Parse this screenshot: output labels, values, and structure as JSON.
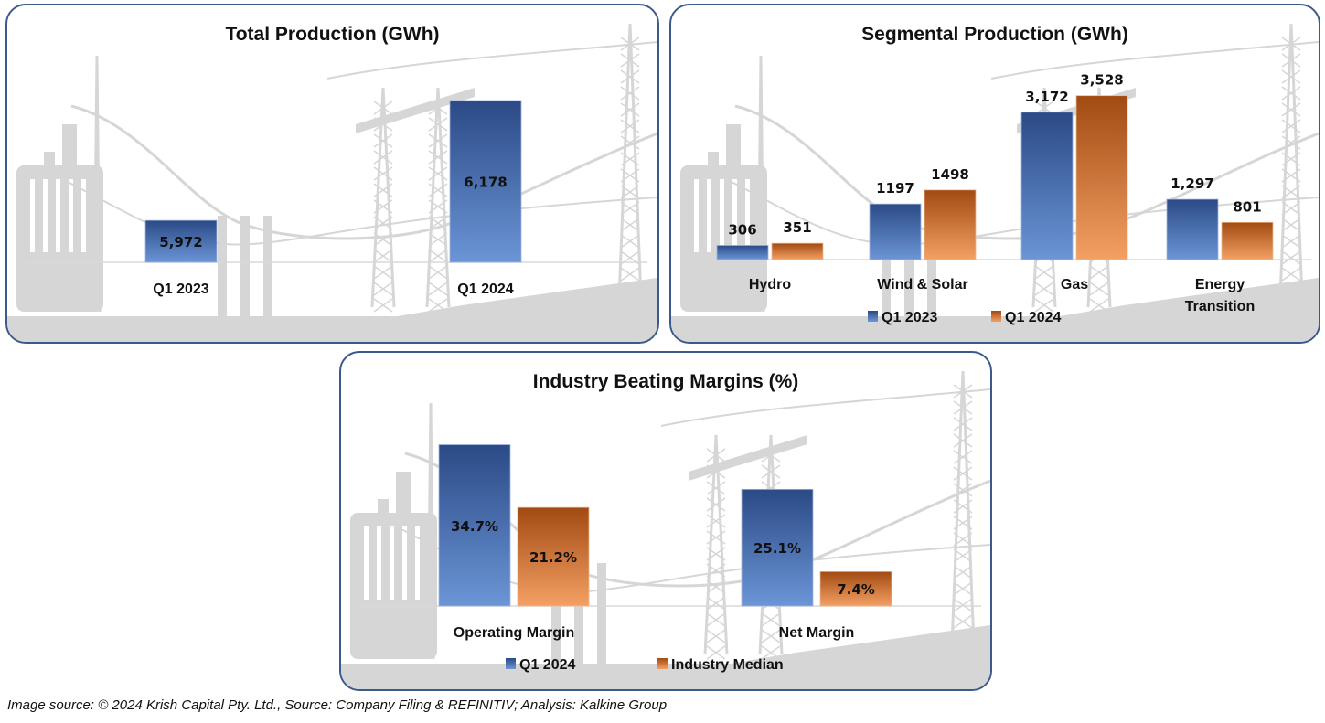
{
  "colors": {
    "series_blue_top": "#2b4a86",
    "series_blue_bottom": "#6b95d6",
    "series_orange_top": "#a14a12",
    "series_orange_bottom": "#f4a064",
    "panel_border": "#3b5a8c",
    "background_silhouette": "#d6d6d6"
  },
  "chart_data": [
    {
      "id": "total",
      "type": "bar",
      "title": "Total Production (GWh)",
      "xlabel": "",
      "ylabel": "",
      "categories": [
        "Q1 2023",
        "Q1 2024"
      ],
      "series": [
        {
          "name": "Total Production",
          "color": "blue",
          "values": [
            5972,
            6178
          ],
          "labels": [
            "5,972",
            "6,178"
          ]
        }
      ],
      "ylim": [
        5900,
        6200
      ],
      "label_position": "inside",
      "legend": null,
      "grid": false
    },
    {
      "id": "segmental",
      "type": "bar",
      "title": "Segmental Production (GWh)",
      "xlabel": "",
      "ylabel": "",
      "categories": [
        "Hydro",
        "Wind & Solar",
        "Gas",
        "Energy Transition"
      ],
      "series": [
        {
          "name": "Q1 2023",
          "color": "blue",
          "values": [
            306,
            1197,
            3172,
            1297
          ],
          "labels": [
            "306",
            "1197",
            "3,172",
            "1,297"
          ]
        },
        {
          "name": "Q1 2024",
          "color": "orange",
          "values": [
            351,
            1498,
            3528,
            801
          ],
          "labels": [
            "351",
            "1498",
            "3,528",
            "801"
          ]
        }
      ],
      "ylim": [
        0,
        3600
      ],
      "label_position": "above",
      "legend": "bottom",
      "grid": false
    },
    {
      "id": "margins",
      "type": "bar",
      "title": "Industry Beating Margins (%)",
      "xlabel": "",
      "ylabel": "",
      "categories": [
        "Operating Margin",
        "Net Margin"
      ],
      "series": [
        {
          "name": "Q1 2024",
          "color": "blue",
          "values": [
            34.7,
            25.1
          ],
          "labels": [
            "34.7%",
            "25.1%"
          ]
        },
        {
          "name": "Industry Median",
          "color": "orange",
          "values": [
            21.2,
            7.4
          ],
          "labels": [
            "21.2%",
            "7.4%"
          ]
        }
      ],
      "ylim": [
        0,
        35
      ],
      "label_position": "inside",
      "legend": "bottom",
      "grid": false
    }
  ],
  "footer": {
    "source": "Image source: © 2024 Krish Capital Pty. Ltd., Source: Company Filing & REFINITIV; Analysis: Kalkine Group"
  }
}
